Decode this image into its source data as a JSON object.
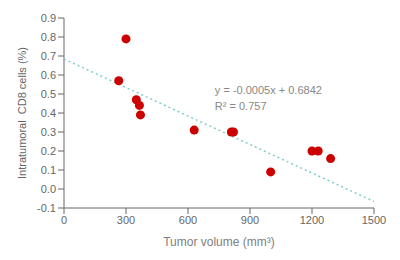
{
  "chart_data": {
    "type": "scatter",
    "xlabel": "Tumor volume (mm³)",
    "ylabel": "Intratumoral  CD8 cells (%)",
    "xlim": [
      0,
      1500
    ],
    "ylim": [
      -0.1,
      0.9
    ],
    "xticks": [
      0,
      300,
      600,
      900,
      1200,
      1500
    ],
    "yticks": [
      -0.1,
      {
        "value": 0,
        "label": "0.0"
      },
      0.1,
      0.2,
      0.3,
      0.4,
      0.5,
      0.6,
      0.7,
      0.8,
      0.9
    ],
    "grid": false,
    "series": [
      {
        "type": "line",
        "color": "#7ecece",
        "line_style": "dotted",
        "x": [
          0,
          1500
        ],
        "values": [
          0.6842,
          -0.0658
        ]
      },
      {
        "type": "scatter",
        "color": "#cc0000",
        "marker": "circle",
        "x": [
          265,
          300,
          350,
          365,
          370,
          630,
          810,
          820,
          1000,
          1200,
          1230,
          1290
        ],
        "values": [
          0.57,
          0.79,
          0.47,
          0.44,
          0.39,
          0.31,
          0.3,
          0.3,
          0.09,
          0.2,
          0.2,
          0.16
        ]
      }
    ],
    "annotations": [
      {
        "text": "y = -0.0005x + 0.6842\nR² = 0.757",
        "x": 730,
        "y": 0.56
      }
    ]
  }
}
